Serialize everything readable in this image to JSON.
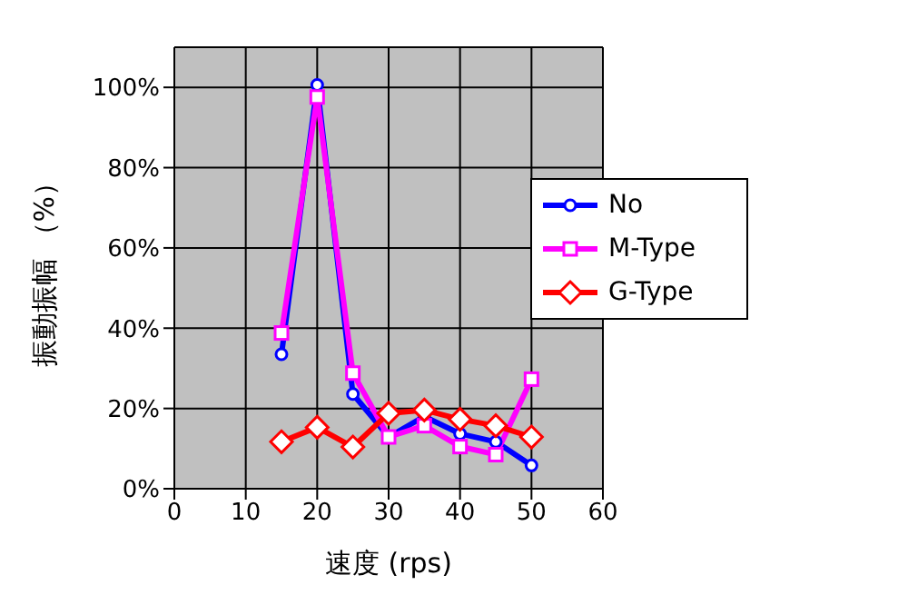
{
  "chart_data": {
    "type": "line",
    "xlabel": "速度 (rps)",
    "ylabel": "振動振幅 （%）",
    "x": [
      15,
      20,
      25,
      30,
      35,
      40,
      45,
      50
    ],
    "xlim": [
      0,
      60
    ],
    "xticks": [
      0,
      10,
      20,
      30,
      40,
      50,
      60
    ],
    "ylim": [
      0,
      110
    ],
    "yticks": [
      {
        "value": 0,
        "label": "0%"
      },
      {
        "value": 20,
        "label": "20%"
      },
      {
        "value": 40,
        "label": "40%"
      },
      {
        "value": 60,
        "label": "60%"
      },
      {
        "value": 80,
        "label": "80%"
      },
      {
        "value": 100,
        "label": "100%"
      }
    ],
    "grid": true,
    "legend": "right",
    "line_style": "solid",
    "series": [
      {
        "name": "No",
        "color": "#0000ff",
        "marker": "circle",
        "values": [
          33.5,
          100.6,
          23.6,
          12.9,
          18,
          13.7,
          11.7,
          5.8
        ]
      },
      {
        "name": "M-Type",
        "color": "#ff00ff",
        "marker": "square",
        "values": [
          38.8,
          97.6,
          28.8,
          12.9,
          15.7,
          10.5,
          8.5,
          27.3
        ]
      },
      {
        "name": "G-Type",
        "color": "#ff0000",
        "marker": "diamond",
        "values": [
          11.7,
          15.3,
          10.4,
          18.8,
          19.6,
          17.3,
          15.7,
          12.9
        ]
      }
    ]
  }
}
